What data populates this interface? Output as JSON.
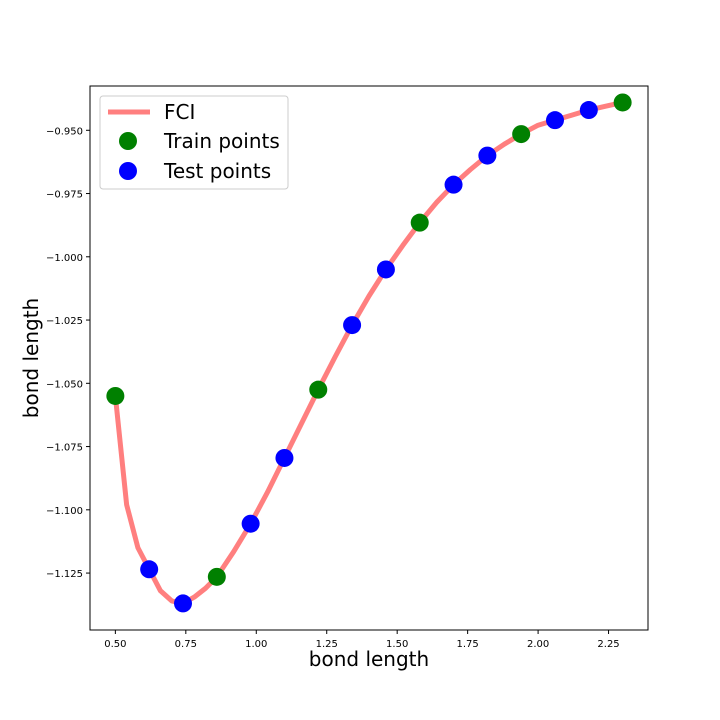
{
  "chart_data": {
    "type": "line",
    "xlabel": "bond length",
    "ylabel": "bond length",
    "xlim": [
      0.41,
      2.39
    ],
    "ylim": [
      -1.1475,
      -0.9325
    ],
    "x_ticks": [
      0.5,
      0.75,
      1.0,
      1.25,
      1.5,
      1.75,
      2.0,
      2.25
    ],
    "x_tick_labels": [
      "0.50",
      "0.75",
      "1.00",
      "1.25",
      "1.50",
      "1.75",
      "2.00",
      "2.25"
    ],
    "y_ticks": [
      -0.95,
      -0.975,
      -1.0,
      -1.025,
      -1.05,
      -1.075,
      -1.1,
      -1.125
    ],
    "y_tick_labels": [
      "−0.950",
      "−0.975",
      "−1.000",
      "−1.025",
      "−1.050",
      "−1.075",
      "−1.100",
      "−1.125"
    ],
    "legend_position": "top-left",
    "series": [
      {
        "name": "FCI",
        "kind": "line",
        "color": "#ff7f7f",
        "x": [
          0.5,
          0.54,
          0.58,
          0.62,
          0.66,
          0.7,
          0.74,
          0.78,
          0.82,
          0.86,
          0.92,
          0.98,
          1.04,
          1.1,
          1.16,
          1.22,
          1.28,
          1.34,
          1.4,
          1.46,
          1.52,
          1.58,
          1.64,
          1.7,
          1.76,
          1.82,
          1.88,
          1.94,
          2.0,
          2.06,
          2.12,
          2.18,
          2.24,
          2.3
        ],
        "y": [
          -1.055,
          -1.098,
          -1.115,
          -1.1235,
          -1.132,
          -1.136,
          -1.137,
          -1.1345,
          -1.131,
          -1.1265,
          -1.1165,
          -1.1055,
          -1.093,
          -1.0795,
          -1.066,
          -1.0525,
          -1.0395,
          -1.027,
          -1.0155,
          -1.005,
          -0.9955,
          -0.9865,
          -0.9785,
          -0.9715,
          -0.9655,
          -0.96,
          -0.9555,
          -0.9515,
          -0.948,
          -0.946,
          -0.944,
          -0.942,
          -0.9405,
          -0.939
        ]
      },
      {
        "name": "Train points",
        "kind": "scatter",
        "color": "#008000",
        "x": [
          0.5,
          0.86,
          1.22,
          1.58,
          1.94,
          2.3
        ],
        "y": [
          -1.055,
          -1.1265,
          -1.0525,
          -0.9865,
          -0.9515,
          -0.939
        ]
      },
      {
        "name": "Test points",
        "kind": "scatter",
        "color": "#0000ff",
        "x": [
          0.62,
          0.74,
          0.98,
          1.1,
          1.34,
          1.46,
          1.7,
          1.82,
          2.06,
          2.18
        ],
        "y": [
          -1.1235,
          -1.137,
          -1.1055,
          -1.0795,
          -1.027,
          -1.005,
          -0.9715,
          -0.96,
          -0.946,
          -0.942
        ]
      }
    ]
  }
}
